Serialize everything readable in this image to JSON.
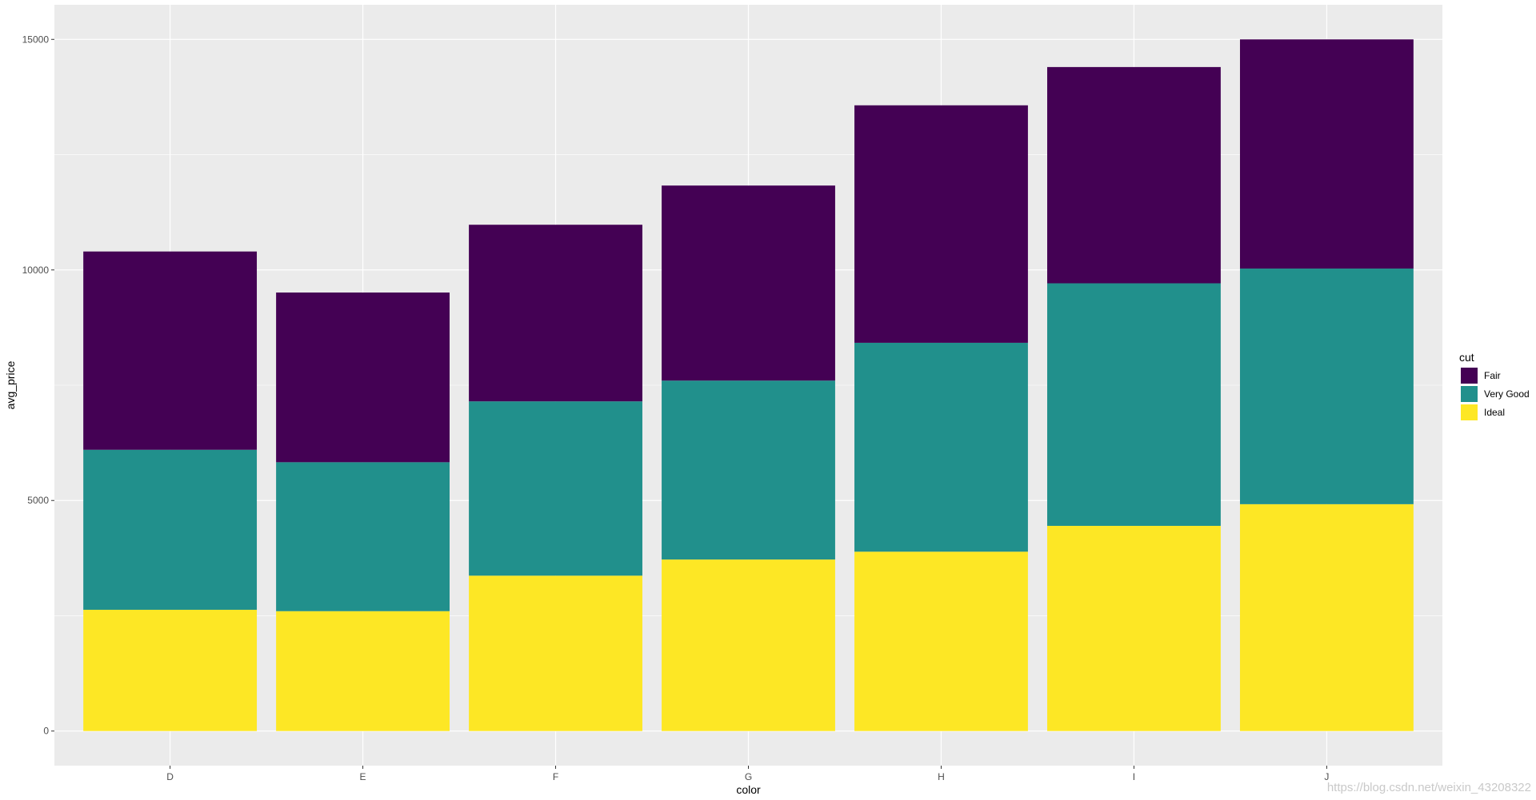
{
  "chart_data": {
    "type": "bar",
    "stacked": true,
    "categories": [
      "D",
      "E",
      "F",
      "G",
      "H",
      "I",
      "J"
    ],
    "series": [
      {
        "name": "Ideal",
        "color": "#FDE725",
        "values": [
          2630,
          2600,
          3370,
          3720,
          3890,
          4450,
          4920
        ]
      },
      {
        "name": "Very Good",
        "color": "#21908C",
        "values": [
          3470,
          3230,
          3780,
          3880,
          4530,
          5260,
          5110
        ]
      },
      {
        "name": "Fair",
        "color": "#440154",
        "values": [
          4300,
          3680,
          3830,
          4230,
          5150,
          4690,
          4970
        ]
      }
    ],
    "xlabel": "color",
    "ylabel": "avg_price",
    "ylim": [
      -750,
      15750
    ],
    "yticks": [
      0,
      5000,
      10000,
      15000
    ],
    "ytick_labels": [
      "0",
      "5000",
      "10000",
      "15000"
    ],
    "grid": true,
    "legend": {
      "title": "cut",
      "position": "right",
      "entries": [
        {
          "label": "Fair",
          "color": "#440154"
        },
        {
          "label": "Very Good",
          "color": "#21908C"
        },
        {
          "label": "Ideal",
          "color": "#FDE725"
        }
      ]
    }
  },
  "watermark": "https://blog.csdn.net/weixin_43208322"
}
